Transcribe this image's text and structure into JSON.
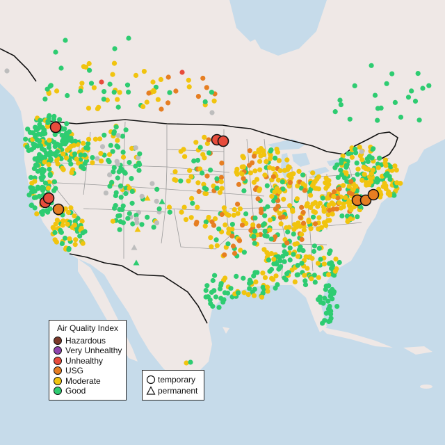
{
  "legend": {
    "title": "Air Quality Index",
    "categories": [
      {
        "label": "Hazardous",
        "color": "#7b3a2a"
      },
      {
        "label": "Very Unhealthy",
        "color": "#8e44ad"
      },
      {
        "label": "Unhealthy",
        "color": "#e74c3c"
      },
      {
        "label": "USG",
        "color": "#e67e22"
      },
      {
        "label": "Moderate",
        "color": "#f1c40f"
      },
      {
        "label": "Good",
        "color": "#2ecc71"
      }
    ]
  },
  "monitor_type_legend": {
    "items": [
      {
        "label": "temporary",
        "shape": "circle"
      },
      {
        "label": "permanent",
        "shape": "triangle"
      }
    ]
  },
  "colors": {
    "ocean": "#c6dbea",
    "land": "#efe8e6",
    "state_border": "#9a9a9a",
    "country_border": "#111111",
    "no_data": "#bdbdbd"
  }
}
